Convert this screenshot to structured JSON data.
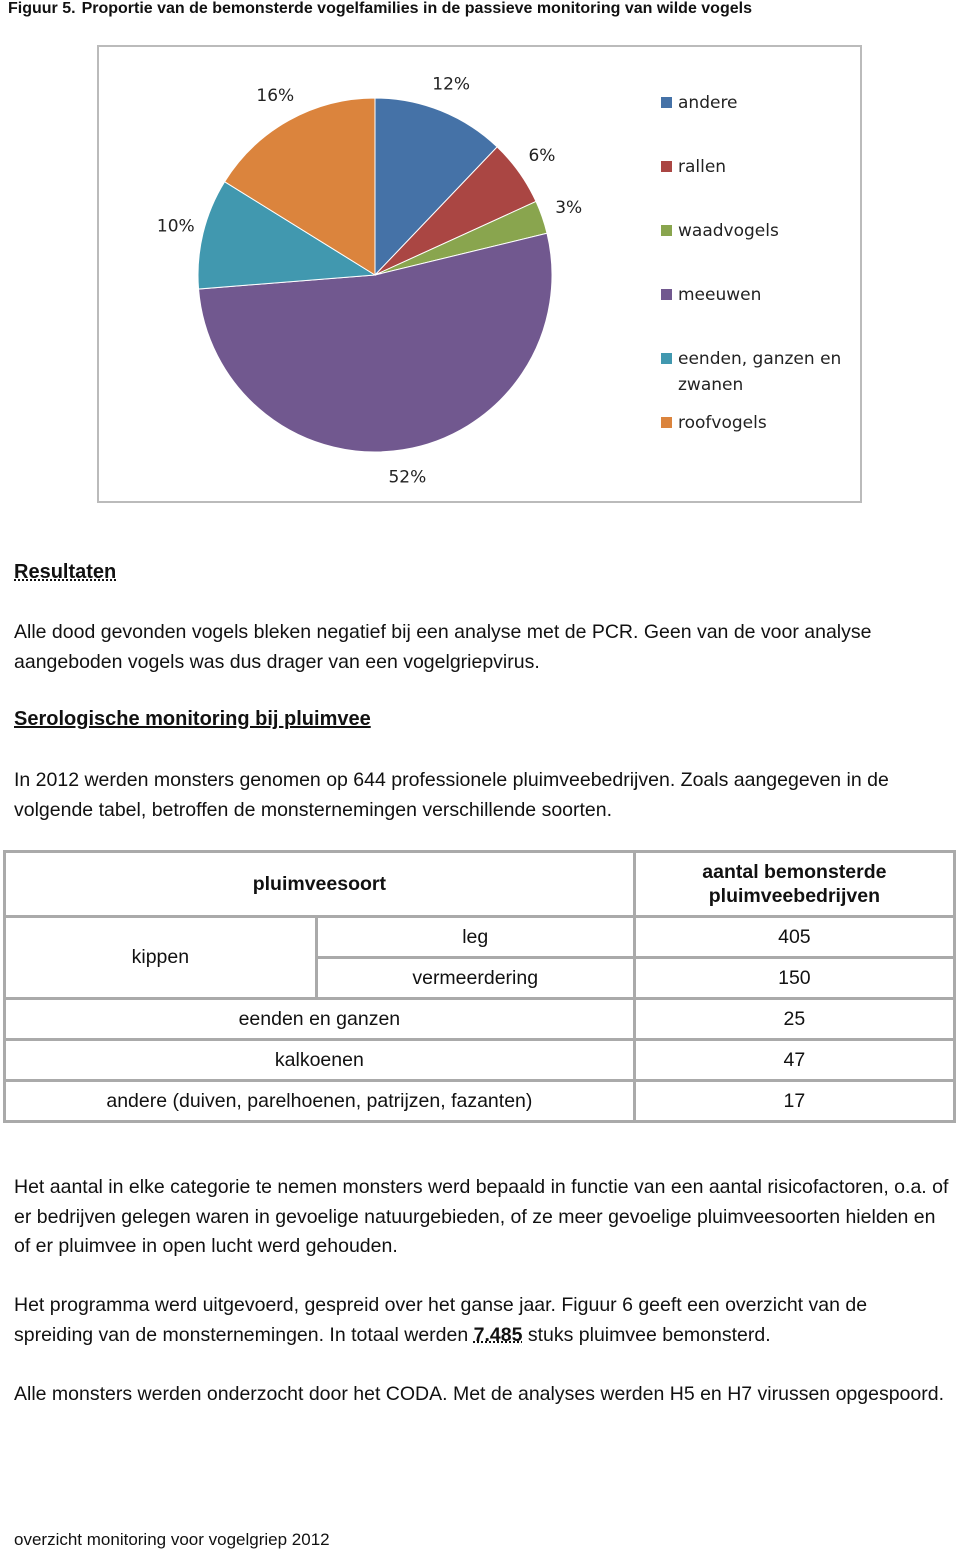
{
  "caption": {
    "label": "Figuur 5.",
    "title": "Proportie van de bemonsterde vogelfamilies in de passieve monitoring van wilde vogels"
  },
  "chart_data": {
    "type": "pie",
    "categories": [
      "andere",
      "rallen",
      "waadvogels",
      "meeuwen",
      "eenden, ganzen en zwanen",
      "roofvogels"
    ],
    "values": [
      12,
      6,
      3,
      52,
      10,
      16
    ],
    "value_labels": [
      "12%",
      "6%",
      "3%",
      "52%",
      "10%",
      "16%"
    ],
    "colors": [
      "#4572a7",
      "#aa4643",
      "#89a54e",
      "#71588f",
      "#4198af",
      "#db843d"
    ],
    "legend": "right"
  },
  "results": {
    "heading": "Resultaten",
    "text": "Alle dood gevonden vogels bleken negatief bij een analyse met de PCR. Geen van de voor analyse aangeboden vogels was dus drager van een vogelgriepvirus."
  },
  "serology": {
    "heading": "Serologische monitoring bij pluimvee",
    "text": "In 2012 werden monsters genomen op 644 professionele pluimveebedrijven. Zoals aangegeven in de volgende tabel, betroffen de monsternemingen verschillende soorten."
  },
  "table": {
    "header": [
      "pluimveesoort",
      "aantal bemonsterde pluimveebedrijven"
    ],
    "group": {
      "label": "kippen",
      "rows": [
        [
          "leg",
          405
        ],
        [
          "vermeerdering",
          150
        ]
      ]
    },
    "rows": [
      [
        "eenden en ganzen",
        25
      ],
      [
        "kalkoenen",
        47
      ],
      [
        "andere (duiven, parelhoenen, patrijzen, fazanten)",
        17
      ]
    ]
  },
  "paragraphs": [
    [
      "Het aantal in elke categorie te nemen monsters werd bepaald in functie van een aantal risicofactoren, o.a. of er bedrijven gelegen waren in gevoelige natuurgebieden, of ze meer gevoelige pluimveesoorten hielden en of er pluimvee in open lucht werd gehouden."
    ],
    [
      "Het programma werd uitgevoerd, gespreid over het ganse jaar. Figuur 6 geeft een overzicht van de spreiding van de monsternemingen. In totaal werden ",
      "7.485",
      " stuks pluimvee bemonsterd."
    ],
    [
      "Alle monsters werden onderzocht door het CODA. Met de analyses werden H5 en H7 virussen opgespoord."
    ]
  ],
  "footer": "overzicht monitoring voor vogelgriep 2012"
}
